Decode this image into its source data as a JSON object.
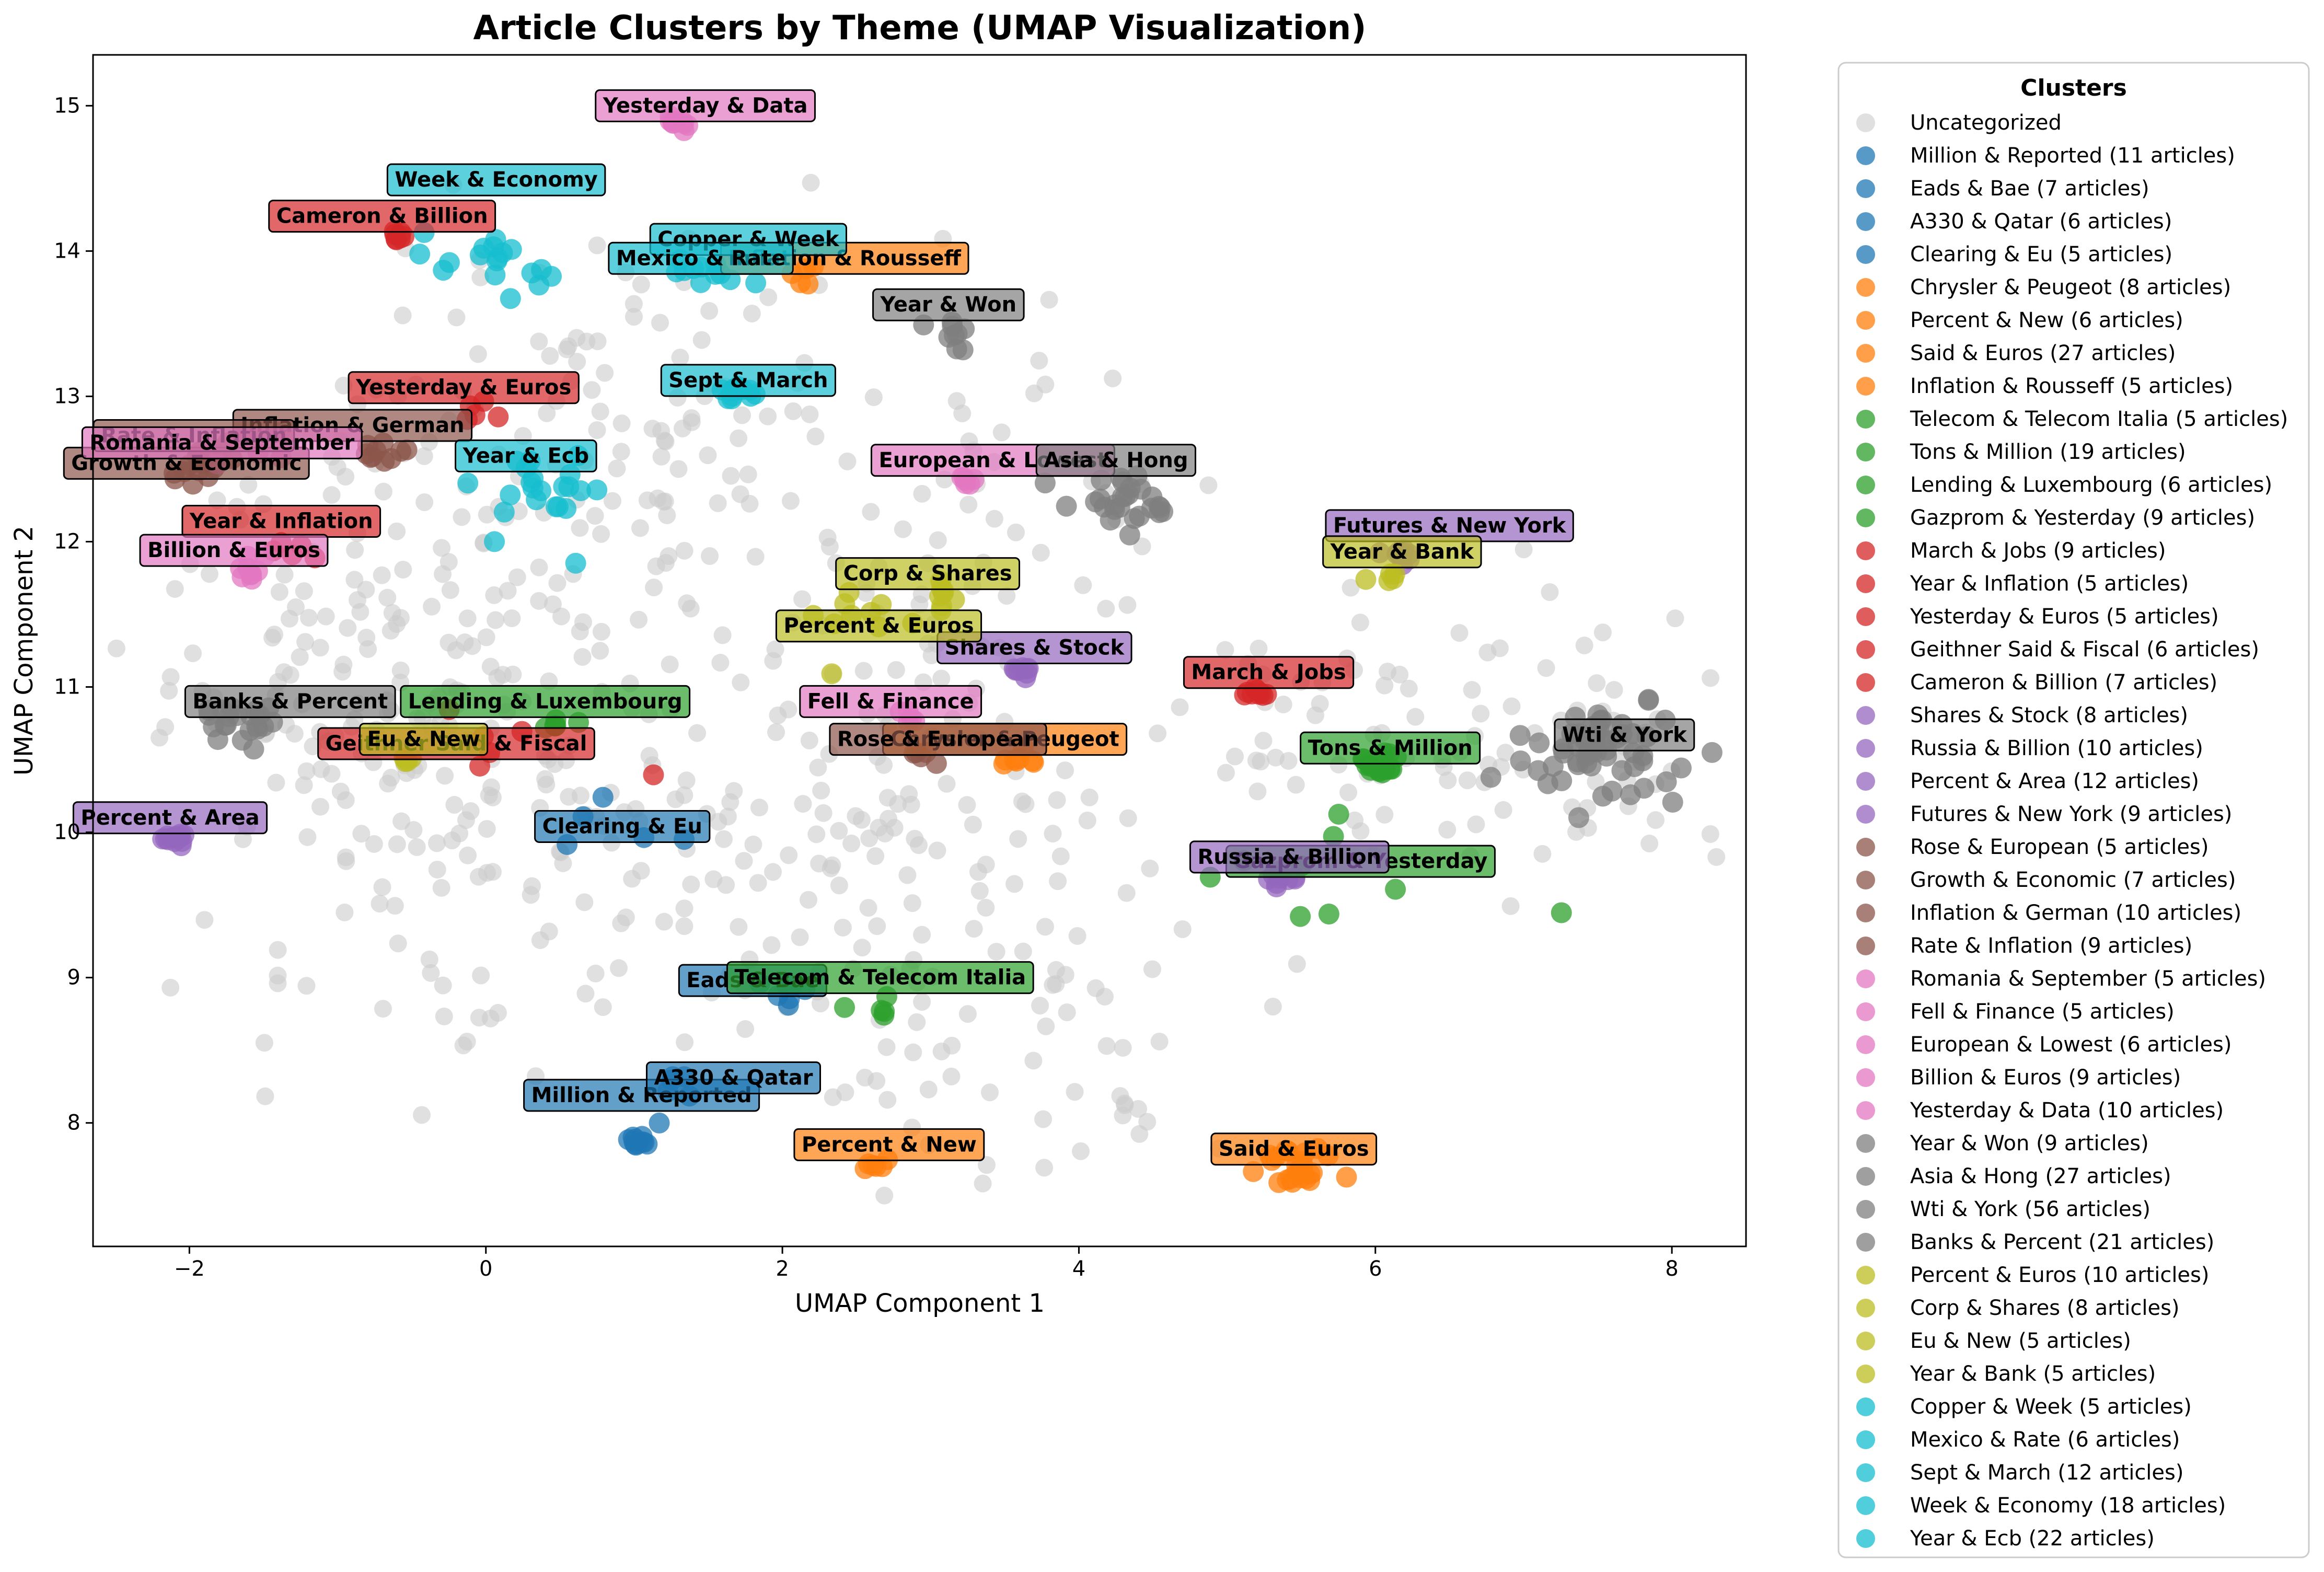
{
  "chart_data": {
    "type": "scatter",
    "title": "Article Clusters by Theme (UMAP Visualization)",
    "xlabel": "UMAP Component 1",
    "ylabel": "UMAP Component 2",
    "xlim": [
      -2.65,
      8.5
    ],
    "ylim": [
      7.15,
      15.35
    ],
    "x_ticks": [
      -2,
      0,
      2,
      4,
      6,
      8
    ],
    "y_ticks": [
      8,
      9,
      10,
      11,
      12,
      13,
      14,
      15
    ],
    "grid": false,
    "legend": {
      "title": "Clusters",
      "placement": "outside-right"
    },
    "uncategorized": {
      "name": "Uncategorized",
      "color": "#cccccc",
      "count": 700,
      "seed": 7
    },
    "clusters": [
      {
        "name": "Million & Reported",
        "legend": "Million & Reported (11 articles)",
        "color": "#1f77b4",
        "count": 11,
        "center": [
          1.02,
          7.88
        ],
        "spread": 0.04,
        "label_pos": [
          1.05,
          8.19
        ]
      },
      {
        "name": "Eads & Bae",
        "legend": "Eads & Bae (7 articles)",
        "color": "#1f77b4",
        "count": 7,
        "center": [
          1.95,
          8.88
        ],
        "spread": 0.12,
        "label_pos": [
          1.8,
          8.98
        ]
      },
      {
        "name": "A330 & Qatar",
        "legend": "A330 & Qatar (6 articles)",
        "color": "#1f77b4",
        "count": 6,
        "center": [
          1.35,
          8.25
        ],
        "spread": 0.12,
        "label_pos": [
          1.67,
          8.31
        ]
      },
      {
        "name": "Clearing & Eu",
        "legend": "Clearing & Eu (5 articles)",
        "color": "#1f77b4",
        "count": 5,
        "center": [
          0.8,
          10.1
        ],
        "spread": 0.45,
        "label_pos": [
          0.92,
          10.04
        ]
      },
      {
        "name": "Chrysler & Peugeot",
        "legend": "Chrysler & Peugeot (8 articles)",
        "color": "#ff7f0e",
        "count": 8,
        "center": [
          3.6,
          10.5
        ],
        "spread": 0.08,
        "label_pos": [
          3.5,
          10.64
        ]
      },
      {
        "name": "Percent & New",
        "legend": "Percent & New (6 articles)",
        "color": "#ff7f0e",
        "count": 6,
        "center": [
          2.6,
          7.72
        ],
        "spread": 0.05,
        "label_pos": [
          2.72,
          7.85
        ]
      },
      {
        "name": "Said & Euros",
        "legend": "Said & Euros (27 articles)",
        "color": "#ff7f0e",
        "count": 27,
        "center": [
          5.5,
          7.68
        ],
        "spread": 0.13,
        "label_pos": [
          5.45,
          7.82
        ]
      },
      {
        "name": "Inflation & Rousseff",
        "legend": "Inflation & Rousseff (5 articles)",
        "color": "#ff7f0e",
        "count": 5,
        "center": [
          2.1,
          13.82
        ],
        "spread": 0.08,
        "label_pos": [
          2.42,
          13.95
        ]
      },
      {
        "name": "Telecom & Telecom Italia",
        "legend": "Telecom & Telecom Italia (5 articles)",
        "color": "#2ca02c",
        "count": 5,
        "center": [
          2.72,
          8.8
        ],
        "spread": 0.12,
        "label_pos": [
          2.66,
          9.0
        ]
      },
      {
        "name": "Tons & Million",
        "legend": "Tons & Million (19 articles)",
        "color": "#2ca02c",
        "count": 19,
        "center": [
          6.05,
          10.47
        ],
        "spread": 0.08,
        "label_pos": [
          6.1,
          10.58
        ]
      },
      {
        "name": "Lending & Luxembourg",
        "legend": "Lending & Luxembourg (6 articles)",
        "color": "#2ca02c",
        "count": 6,
        "center": [
          0.47,
          10.76
        ],
        "spread": 0.06,
        "label_pos": [
          0.4,
          10.9
        ]
      },
      {
        "name": "Gazprom & Yesterday",
        "legend": "Gazprom & Yesterday (9 articles)",
        "color": "#2ca02c",
        "count": 9,
        "center": [
          5.6,
          9.68
        ],
        "spread": 0.55,
        "label_pos": [
          5.9,
          9.8
        ]
      },
      {
        "name": "March & Jobs",
        "legend": "March & Jobs (9 articles)",
        "color": "#d62728",
        "count": 9,
        "center": [
          5.22,
          10.96
        ],
        "spread": 0.04,
        "label_pos": [
          5.28,
          11.1
        ]
      },
      {
        "name": "Year & Inflation",
        "legend": "Year & Inflation (5 articles)",
        "color": "#d62728",
        "count": 5,
        "center": [
          -1.3,
          11.95
        ],
        "spread": 0.1,
        "label_pos": [
          -1.38,
          12.14
        ]
      },
      {
        "name": "Yesterday & Euros",
        "legend": "Yesterday & Euros (5 articles)",
        "color": "#d62728",
        "count": 5,
        "center": [
          -0.1,
          12.9
        ],
        "spread": 0.08,
        "label_pos": [
          -0.15,
          13.06
        ]
      },
      {
        "name": "Geithner Said & Fiscal",
        "legend": "Geithner Said & Fiscal (6 articles)",
        "color": "#d62728",
        "count": 6,
        "center": [
          0.25,
          10.6
        ],
        "spread": 0.5,
        "label_pos": [
          -0.2,
          10.61
        ]
      },
      {
        "name": "Cameron & Billion",
        "legend": "Cameron & Billion (7 articles)",
        "color": "#d62728",
        "count": 7,
        "center": [
          -0.62,
          14.1
        ],
        "spread": 0.05,
        "label_pos": [
          -0.7,
          14.24
        ]
      },
      {
        "name": "Shares & Stock",
        "legend": "Shares & Stock (8 articles)",
        "color": "#9467bd",
        "count": 8,
        "center": [
          3.65,
          11.12
        ],
        "spread": 0.05,
        "label_pos": [
          3.7,
          11.27
        ]
      },
      {
        "name": "Russia & Billion",
        "legend": "Russia & Billion (10 articles)",
        "color": "#9467bd",
        "count": 10,
        "center": [
          5.38,
          9.68
        ],
        "spread": 0.05,
        "label_pos": [
          5.42,
          9.83
        ]
      },
      {
        "name": "Percent & Area",
        "legend": "Percent & Area (12 articles)",
        "color": "#9467bd",
        "count": 12,
        "center": [
          -2.08,
          9.95
        ],
        "spread": 0.05,
        "label_pos": [
          -2.13,
          10.1
        ]
      },
      {
        "name": "Futures & New York",
        "legend": "Futures & New York (9 articles)",
        "color": "#9467bd",
        "count": 9,
        "center": [
          6.15,
          11.9
        ],
        "spread": 0.06,
        "label_pos": [
          6.5,
          12.11
        ]
      },
      {
        "name": "Rose & European",
        "legend": "Rose & European (5 articles)",
        "color": "#8c564b",
        "count": 5,
        "center": [
          2.97,
          10.5
        ],
        "spread": 0.06,
        "label_pos": [
          3.05,
          10.64
        ]
      },
      {
        "name": "Growth & Economic",
        "legend": "Growth & Economic (7 articles)",
        "color": "#8c564b",
        "count": 7,
        "center": [
          -2.0,
          12.45
        ],
        "spread": 0.08,
        "label_pos": [
          -2.02,
          12.54
        ]
      },
      {
        "name": "Inflation & German",
        "legend": "Inflation & German (10 articles)",
        "color": "#8c564b",
        "count": 10,
        "center": [
          -0.7,
          12.6
        ],
        "spread": 0.1,
        "label_pos": [
          -0.9,
          12.8
        ]
      },
      {
        "name": "Rate & Inflation",
        "legend": "Rate & Inflation (9 articles)",
        "color": "#8c564b",
        "count": 9,
        "center": [
          -1.85,
          12.6
        ],
        "spread": 0.1,
        "label_pos": [
          -1.97,
          12.73
        ]
      },
      {
        "name": "Romania & September",
        "legend": "Romania & September (5 articles)",
        "color": "#e377c2",
        "count": 5,
        "center": [
          -1.5,
          12.6
        ],
        "spread": 0.12,
        "label_pos": [
          -1.78,
          12.68
        ]
      },
      {
        "name": "Fell & Finance",
        "legend": "Fell & Finance (5 articles)",
        "color": "#e377c2",
        "count": 5,
        "center": [
          2.8,
          10.78
        ],
        "spread": 0.06,
        "label_pos": [
          2.73,
          10.9
        ]
      },
      {
        "name": "European & Lowest",
        "legend": "European & Lowest (6 articles)",
        "color": "#e377c2",
        "count": 6,
        "center": [
          3.3,
          12.42
        ],
        "spread": 0.07,
        "label_pos": [
          3.42,
          12.56
        ]
      },
      {
        "name": "Billion & Euros",
        "legend": "Billion & Euros (9 articles)",
        "color": "#e377c2",
        "count": 9,
        "center": [
          -1.62,
          11.8
        ],
        "spread": 0.08,
        "label_pos": [
          -1.7,
          11.94
        ]
      },
      {
        "name": "Yesterday & Data",
        "legend": "Yesterday & Data (10 articles)",
        "color": "#e377c2",
        "count": 10,
        "center": [
          1.3,
          14.88
        ],
        "spread": 0.05,
        "label_pos": [
          1.48,
          15.0
        ]
      },
      {
        "name": "Year & Won",
        "legend": "Year & Won (9 articles)",
        "color": "#7f7f7f",
        "count": 9,
        "center": [
          3.15,
          13.45
        ],
        "spread": 0.1,
        "label_pos": [
          3.12,
          13.63
        ]
      },
      {
        "name": "Asia & Hong",
        "legend": "Asia & Hong (27 articles)",
        "color": "#7f7f7f",
        "count": 27,
        "center": [
          4.3,
          12.3
        ],
        "spread": 0.18,
        "label_pos": [
          4.25,
          12.56
        ]
      },
      {
        "name": "Wti & York",
        "legend": "Wti & York (56 articles)",
        "color": "#7f7f7f",
        "count": 56,
        "center": [
          7.55,
          10.55
        ],
        "spread": 0.3,
        "label_pos": [
          7.68,
          10.67
        ]
      },
      {
        "name": "Banks & Percent",
        "legend": "Banks & Percent (21 articles)",
        "color": "#7f7f7f",
        "count": 21,
        "center": [
          -1.65,
          10.75
        ],
        "spread": 0.12,
        "label_pos": [
          -1.32,
          10.9
        ]
      },
      {
        "name": "Percent & Euros",
        "legend": "Percent & Euros (10 articles)",
        "color": "#bcbd22",
        "count": 10,
        "center": [
          2.5,
          11.5
        ],
        "spread": 0.3,
        "label_pos": [
          2.65,
          11.42
        ]
      },
      {
        "name": "Corp & Shares",
        "legend": "Corp & Shares (8 articles)",
        "color": "#bcbd22",
        "count": 8,
        "center": [
          3.05,
          11.62
        ],
        "spread": 0.08,
        "label_pos": [
          2.98,
          11.78
        ]
      },
      {
        "name": "Eu & New",
        "legend": "Eu & New (5 articles)",
        "color": "#bcbd22",
        "count": 5,
        "center": [
          -0.5,
          10.48
        ],
        "spread": 0.05,
        "label_pos": [
          -0.42,
          10.64
        ]
      },
      {
        "name": "Year & Bank",
        "legend": "Year & Bank (5 articles)",
        "color": "#bcbd22",
        "count": 5,
        "center": [
          6.08,
          11.75
        ],
        "spread": 0.05,
        "label_pos": [
          6.18,
          11.93
        ]
      },
      {
        "name": "Copper & Week",
        "legend": "Copper & Week (5 articles)",
        "color": "#17becf",
        "count": 5,
        "center": [
          1.6,
          13.8
        ],
        "spread": 0.15,
        "label_pos": [
          1.77,
          14.08
        ]
      },
      {
        "name": "Mexico & Rate",
        "legend": "Mexico & Rate (6 articles)",
        "color": "#17becf",
        "count": 6,
        "center": [
          1.35,
          13.85
        ],
        "spread": 0.12,
        "label_pos": [
          1.45,
          13.95
        ]
      },
      {
        "name": "Sept & March",
        "legend": "Sept & March (12 articles)",
        "color": "#17becf",
        "count": 12,
        "center": [
          1.7,
          13.02
        ],
        "spread": 0.05,
        "label_pos": [
          1.77,
          13.11
        ]
      },
      {
        "name": "Week & Economy",
        "legend": "Week & Economy (18 articles)",
        "color": "#17becf",
        "count": 18,
        "center": [
          0.1,
          13.9
        ],
        "spread": 0.25,
        "label_pos": [
          0.07,
          14.49
        ]
      },
      {
        "name": "Year & Ecb",
        "legend": "Year & Ecb (22 articles)",
        "color": "#17becf",
        "count": 22,
        "center": [
          0.45,
          12.35
        ],
        "spread": 0.22,
        "label_pos": [
          0.27,
          12.59
        ]
      }
    ]
  }
}
